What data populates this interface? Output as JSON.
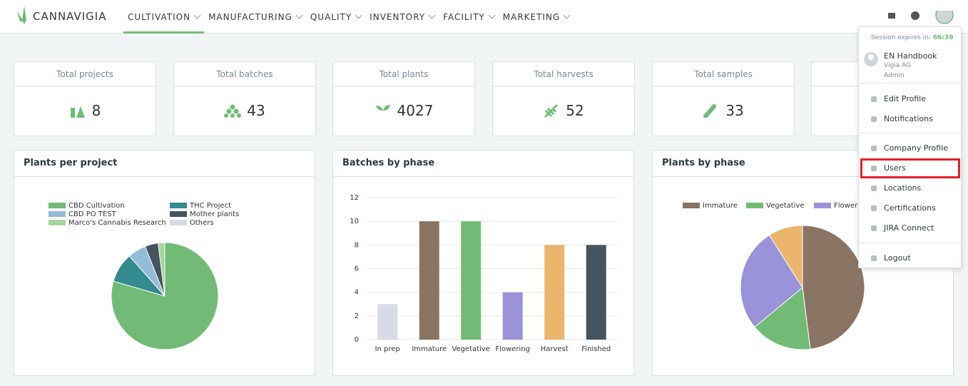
{
  "header": {
    "logo": "CANNAVIGIA",
    "nav": [
      "CULTIVATION",
      "MANUFACTURING",
      "QUALITY",
      "INVENTORY",
      "FACILITY",
      "MARKETING"
    ]
  },
  "stats": [
    {
      "label": "Total projects",
      "value": 8
    },
    {
      "label": "Total batches",
      "value": 43
    },
    {
      "label": "Total plants",
      "value": 4027
    },
    {
      "label": "Total harvests",
      "value": 52
    },
    {
      "label": "Total samples",
      "value": 33
    }
  ],
  "chart_data": [
    {
      "type": "pie",
      "title": "Plants per project",
      "categories": [
        "CBD Cultivation",
        "THC Project",
        "CBD PO TEST",
        "Mother plants",
        "Marco's Cannabis Research",
        "Others"
      ],
      "values": [
        79.5,
        9,
        5.5,
        4,
        2,
        0
      ],
      "colors": [
        "#72bb76",
        "#338a8f",
        "#93bcd8",
        "#45555f",
        "#a8d59b",
        "#d5dce8"
      ]
    },
    {
      "type": "bar",
      "title": "Batches by phase",
      "categories": [
        "In prep",
        "Immature",
        "Vegetative",
        "Flowering",
        "Harvest",
        "Finished"
      ],
      "values": [
        3,
        10,
        10,
        4,
        8,
        8
      ],
      "colors": [
        "#d5dce8",
        "#8a7463",
        "#72bb76",
        "#9b93d9",
        "#ebb56d",
        "#45555f"
      ],
      "ylim": [
        0,
        12
      ],
      "yticks": [
        0,
        2,
        4,
        6,
        8,
        10,
        12
      ],
      "grid": true
    },
    {
      "type": "pie",
      "title": "Plants by phase",
      "categories": [
        "Immature",
        "Vegetative",
        "Flowering",
        null
      ],
      "values": [
        48,
        16,
        27,
        9
      ],
      "colors": [
        "#8a7463",
        "#72bb76",
        "#9b93d9",
        "#ebb56d"
      ]
    }
  ],
  "menu": {
    "session_label": "Session expires in:",
    "session_time": "66:39",
    "user": {
      "name": "EN Handbook",
      "company": "Vigia AG",
      "role": "Admin"
    },
    "items": [
      "Edit Profile",
      "Notifications",
      "Company Profile",
      "Users",
      "Locations",
      "Certifications",
      "JIRA Connect",
      "Logout"
    ]
  }
}
